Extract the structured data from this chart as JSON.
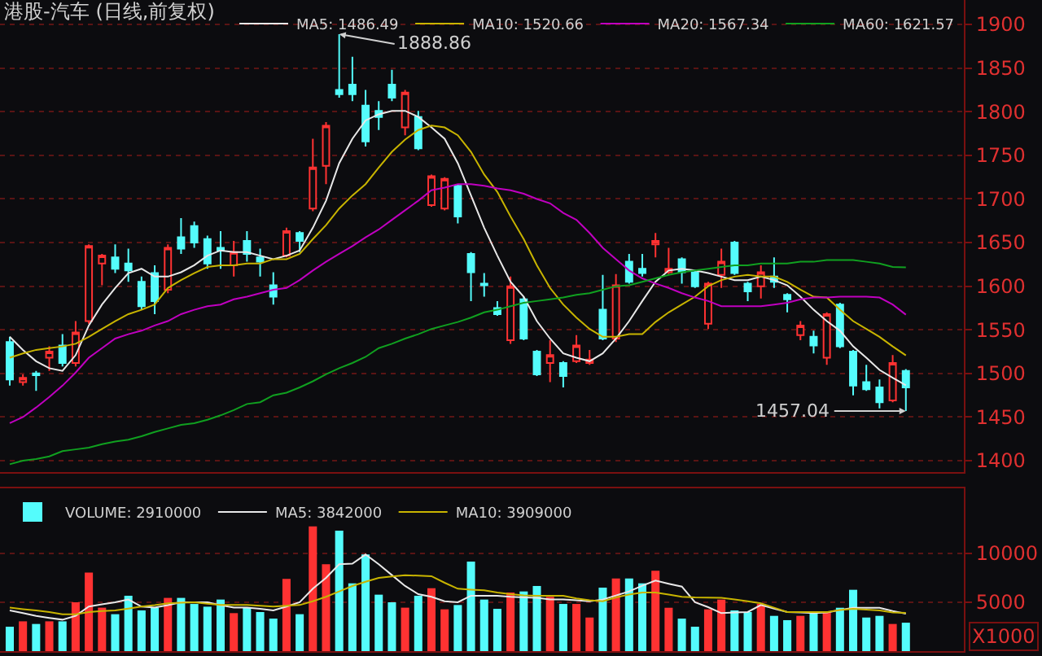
{
  "chart_data": [
    {
      "type": "candlestick",
      "title": "港股-汽车 (日线,前复权)",
      "categories": [
        null,
        null,
        null,
        null,
        null,
        null,
        null,
        null,
        null,
        null,
        null,
        null,
        null,
        null,
        null,
        null,
        null,
        null,
        null,
        null,
        null,
        null,
        null,
        null,
        null,
        null,
        null,
        null,
        null,
        null,
        null,
        null,
        null,
        null,
        null,
        null,
        null,
        null,
        null,
        null,
        null,
        null,
        null,
        null,
        null,
        null,
        null,
        null,
        null,
        null,
        null,
        null,
        null,
        null,
        null,
        null,
        null,
        null,
        null,
        null,
        null,
        null,
        null,
        null,
        null,
        null,
        null,
        null,
        null
      ],
      "ohlc": [
        [
          1536,
          1542,
          1486,
          1493
        ],
        [
          1490,
          1499,
          1486,
          1495
        ],
        [
          1500,
          1503,
          1480,
          1498
        ],
        [
          1518,
          1531,
          1503,
          1525
        ],
        [
          1532,
          1545,
          1508,
          1512
        ],
        [
          1512,
          1560,
          1508,
          1547
        ],
        [
          1560,
          1648,
          1557,
          1646
        ],
        [
          1626,
          1637,
          1601,
          1635
        ],
        [
          1633,
          1648,
          1615,
          1620
        ],
        [
          1626,
          1643,
          1605,
          1618
        ],
        [
          1605,
          1611,
          1573,
          1577
        ],
        [
          1615,
          1624,
          1568,
          1583
        ],
        [
          1596,
          1648,
          1592,
          1644
        ],
        [
          1656,
          1678,
          1637,
          1643
        ],
        [
          1669,
          1674,
          1644,
          1650
        ],
        [
          1654,
          1658,
          1620,
          1626
        ],
        [
          1644,
          1663,
          1620,
          1641
        ],
        [
          1624,
          1652,
          1611,
          1639
        ],
        [
          1652,
          1663,
          1628,
          1637
        ],
        [
          1633,
          1643,
          1611,
          1628
        ],
        [
          1601,
          1616,
          1579,
          1588
        ],
        [
          1635,
          1667,
          1633,
          1663
        ],
        [
          1661,
          1663,
          1639,
          1652
        ],
        [
          1689,
          1769,
          1686,
          1736
        ],
        [
          1738,
          1788,
          1717,
          1784
        ],
        [
          1825,
          1888.86,
          1816,
          1820
        ],
        [
          1831,
          1863,
          1812,
          1820
        ],
        [
          1807,
          1825,
          1760,
          1766
        ],
        [
          1801,
          1812,
          1779,
          1794
        ],
        [
          1831,
          1848,
          1812,
          1816
        ],
        [
          1782,
          1825,
          1773,
          1822
        ],
        [
          1794,
          1801,
          1756,
          1758
        ],
        [
          1693,
          1728,
          1691,
          1726
        ],
        [
          1689,
          1725,
          1687,
          1723
        ],
        [
          1715,
          1717,
          1672,
          1680
        ],
        [
          1637,
          1639,
          1583,
          1616
        ],
        [
          1603,
          1615,
          1588,
          1601
        ],
        [
          1575,
          1583,
          1566,
          1568
        ],
        [
          1538,
          1611,
          1534,
          1600
        ],
        [
          1585,
          1588,
          1538,
          1540
        ],
        [
          1525,
          1527,
          1497,
          1499
        ],
        [
          1512,
          1538,
          1490,
          1521
        ],
        [
          1512,
          1514,
          1484,
          1497
        ],
        [
          1514,
          1544,
          1512,
          1532
        ],
        [
          1512,
          1527,
          1510,
          1516
        ],
        [
          1573,
          1613,
          1538,
          1540
        ],
        [
          1540,
          1614,
          1536,
          1601
        ],
        [
          1628,
          1637,
          1603,
          1605
        ],
        [
          1620,
          1637,
          1611,
          1615
        ],
        [
          1648,
          1661,
          1633,
          1652
        ],
        [
          1616,
          1644,
          1614,
          1620
        ],
        [
          1631,
          1633,
          1603,
          1616
        ],
        [
          1616,
          1618,
          1598,
          1600
        ],
        [
          1557,
          1605,
          1551,
          1603
        ],
        [
          1613,
          1643,
          1598,
          1628
        ],
        [
          1650,
          1652,
          1613,
          1615
        ],
        [
          1603,
          1605,
          1583,
          1594
        ],
        [
          1600,
          1624,
          1586,
          1616
        ],
        [
          1611,
          1633,
          1598,
          1605
        ],
        [
          1590,
          1592,
          1570,
          1585
        ],
        [
          1544,
          1560,
          1538,
          1555
        ],
        [
          1542,
          1549,
          1523,
          1532
        ],
        [
          1518,
          1570,
          1510,
          1568
        ],
        [
          1579,
          1581,
          1529,
          1531
        ],
        [
          1525,
          1527,
          1475,
          1486
        ],
        [
          1490,
          1510,
          1480,
          1482
        ],
        [
          1484,
          1493,
          1460,
          1467
        ],
        [
          1469,
          1521,
          1467,
          1512
        ],
        [
          1503,
          1505,
          1457.04,
          1484
        ]
      ],
      "series": [
        {
          "type": "line",
          "name": "MA5: 1486.49",
          "color": "#e8e8e8",
          "values": [
            1542,
            1527,
            1514,
            1506,
            1503,
            1521,
            1555,
            1579,
            1598,
            1615,
            1620,
            1611,
            1611,
            1616,
            1624,
            1635,
            1641,
            1639,
            1639,
            1635,
            1631,
            1635,
            1641,
            1667,
            1698,
            1741,
            1769,
            1790,
            1797,
            1801,
            1801,
            1794,
            1782,
            1769,
            1741,
            1704,
            1667,
            1635,
            1605,
            1588,
            1560,
            1540,
            1523,
            1518,
            1514,
            1523,
            1540,
            1560,
            1583,
            1605,
            1618,
            1620,
            1618,
            1615,
            1611,
            1607,
            1607,
            1611,
            1607,
            1601,
            1588,
            1573,
            1560,
            1549,
            1531,
            1518,
            1504,
            1495,
            1486.49
          ]
        },
        {
          "type": "line",
          "name": "MA10: 1520.66",
          "color": "#c8b400",
          "values": [
            1518,
            1523,
            1527,
            1529,
            1531,
            1534,
            1542,
            1551,
            1560,
            1568,
            1573,
            1579,
            1598,
            1607,
            1615,
            1622,
            1624,
            1624,
            1626,
            1626,
            1631,
            1631,
            1637,
            1654,
            1670,
            1689,
            1704,
            1717,
            1736,
            1754,
            1768,
            1779,
            1784,
            1782,
            1773,
            1754,
            1728,
            1708,
            1680,
            1654,
            1624,
            1598,
            1579,
            1564,
            1551,
            1542,
            1542,
            1545,
            1545,
            1559,
            1570,
            1579,
            1588,
            1600,
            1607,
            1611,
            1613,
            1611,
            1611,
            1605,
            1596,
            1588,
            1587,
            1573,
            1560,
            1551,
            1542,
            1531,
            1520.66
          ]
        },
        {
          "type": "line",
          "name": "MA20: 1567.34",
          "color": "#c000c0",
          "values": [
            1443,
            1450,
            1461,
            1473,
            1486,
            1501,
            1518,
            1529,
            1540,
            1545,
            1549,
            1555,
            1560,
            1568,
            1573,
            1577,
            1579,
            1585,
            1588,
            1592,
            1596,
            1598,
            1607,
            1618,
            1628,
            1637,
            1646,
            1656,
            1665,
            1676,
            1687,
            1698,
            1710,
            1713,
            1717,
            1717,
            1715,
            1712,
            1710,
            1706,
            1700,
            1695,
            1684,
            1676,
            1661,
            1644,
            1631,
            1618,
            1609,
            1603,
            1598,
            1592,
            1587,
            1583,
            1577,
            1577,
            1577,
            1577,
            1579,
            1581,
            1585,
            1587,
            1587,
            1588,
            1588,
            1588,
            1587,
            1579,
            1567.34
          ]
        },
        {
          "type": "line",
          "name": "MA60: 1621.57",
          "color": "#10a020",
          "values": [
            1396,
            1400,
            1402,
            1405,
            1411,
            1413,
            1415,
            1419,
            1422,
            1424,
            1428,
            1433,
            1437,
            1441,
            1443,
            1447,
            1452,
            1458,
            1465,
            1467,
            1475,
            1478,
            1484,
            1491,
            1499,
            1506,
            1512,
            1519,
            1529,
            1534,
            1540,
            1545,
            1551,
            1555,
            1559,
            1564,
            1570,
            1573,
            1577,
            1581,
            1583,
            1585,
            1587,
            1590,
            1592,
            1596,
            1600,
            1601,
            1605,
            1609,
            1613,
            1616,
            1618,
            1620,
            1622,
            1624,
            1624,
            1626,
            1626,
            1626,
            1628,
            1628,
            1630,
            1630,
            1630,
            1628,
            1626,
            1622,
            1621.57
          ]
        }
      ],
      "ylim": [
        1387,
        1928
      ],
      "yticks": [
        1400,
        1450,
        1500,
        1550,
        1600,
        1650,
        1700,
        1750,
        1800,
        1850,
        1900
      ],
      "annotations": [
        "1888.86",
        "1457.04"
      ],
      "grid": "y",
      "legend": "top right",
      "tick_labels": "y"
    },
    {
      "type": "bar",
      "categories": [
        null,
        null,
        null,
        null,
        null,
        null,
        null,
        null,
        null,
        null,
        null,
        null,
        null,
        null,
        null,
        null,
        null,
        null,
        null,
        null,
        null,
        null,
        null,
        null,
        null,
        null,
        null,
        null,
        null,
        null,
        null,
        null,
        null,
        null,
        null,
        null,
        null,
        null,
        null,
        null,
        null,
        null,
        null,
        null,
        null,
        null,
        null,
        null,
        null,
        null,
        null,
        null,
        null,
        null,
        null,
        null,
        null,
        null,
        null,
        null,
        null,
        null,
        null,
        null,
        null,
        null,
        null,
        null,
        null
      ],
      "series": [
        {
          "type": "bar",
          "name": "VOLUME: 2910000",
          "values": [
            2500,
            3050,
            2780,
            3050,
            3050,
            5000,
            8050,
            4450,
            3780,
            5670,
            4170,
            4450,
            5450,
            5450,
            4830,
            4550,
            5280,
            3890,
            4450,
            4000,
            3330,
            7390,
            3780,
            12780,
            8890,
            12330,
            6940,
            9890,
            5780,
            5000,
            4450,
            5670,
            6440,
            4280,
            4720,
            9170,
            5280,
            4330,
            6000,
            6110,
            6670,
            5560,
            4830,
            4830,
            3440,
            6500,
            7440,
            7440,
            6940,
            8220,
            4440,
            3330,
            2500,
            4280,
            5280,
            4170,
            4000,
            4830,
            3610,
            3170,
            3610,
            4000,
            4000,
            4440,
            6280,
            3440,
            3610,
            2780,
            2910
          ],
          "colors": [
            "#54fcfc",
            "#ff3232",
            "#54fcfc",
            "#ff3232",
            "#54fcfc",
            "#ff3232",
            "#ff3232",
            "#ff3232",
            "#54fcfc",
            "#54fcfc",
            "#54fcfc",
            "#54fcfc",
            "#ff3232",
            "#54fcfc",
            "#54fcfc",
            "#54fcfc",
            "#54fcfc",
            "#ff3232",
            "#54fcfc",
            "#54fcfc",
            "#54fcfc",
            "#ff3232",
            "#54fcfc",
            "#ff3232",
            "#ff3232",
            "#54fcfc",
            "#54fcfc",
            "#54fcfc",
            "#54fcfc",
            "#54fcfc",
            "#ff3232",
            "#54fcfc",
            "#ff3232",
            "#ff3232",
            "#54fcfc",
            "#54fcfc",
            "#54fcfc",
            "#54fcfc",
            "#ff3232",
            "#54fcfc",
            "#54fcfc",
            "#ff3232",
            "#54fcfc",
            "#ff3232",
            "#ff3232",
            "#54fcfc",
            "#ff3232",
            "#54fcfc",
            "#54fcfc",
            "#ff3232",
            "#ff3232",
            "#54fcfc",
            "#54fcfc",
            "#ff3232",
            "#ff3232",
            "#54fcfc",
            "#54fcfc",
            "#ff3232",
            "#54fcfc",
            "#54fcfc",
            "#ff3232",
            "#54fcfc",
            "#ff3232",
            "#54fcfc",
            "#54fcfc",
            "#54fcfc",
            "#54fcfc",
            "#ff3232",
            "#54fcfc"
          ]
        },
        {
          "type": "line",
          "name": "MA5: 3842000",
          "color": "#e8e8e8",
          "values": [
            4170,
            3900,
            3610,
            3400,
            3220,
            3610,
            4560,
            4800,
            5000,
            5280,
            4560,
            4450,
            4700,
            5000,
            5000,
            5000,
            4700,
            4450,
            4450,
            4330,
            4170,
            4560,
            5000,
            6390,
            7500,
            8890,
            8950,
            9890,
            8890,
            7780,
            6670,
            5830,
            5560,
            5110,
            5000,
            5670,
            5670,
            5670,
            5560,
            5500,
            5450,
            5300,
            5300,
            5200,
            5110,
            5280,
            5700,
            6110,
            6700,
            7220,
            6900,
            6610,
            5000,
            4500,
            3890,
            3950,
            4000,
            4720,
            4350,
            4000,
            3950,
            3890,
            3950,
            4200,
            4440,
            4440,
            4440,
            4100,
            3842
          ]
        },
        {
          "type": "line",
          "name": "MA10: 3909000",
          "color": "#c8b400",
          "values": [
            4450,
            4300,
            4170,
            4000,
            3780,
            3780,
            4000,
            4100,
            4170,
            4360,
            4560,
            4700,
            4890,
            4950,
            5000,
            4850,
            4720,
            4720,
            4720,
            4640,
            4560,
            4640,
            4720,
            5100,
            5560,
            6110,
            6670,
            7100,
            7500,
            7640,
            7780,
            7720,
            7670,
            7000,
            6390,
            6300,
            6220,
            6000,
            5830,
            5700,
            5670,
            5670,
            5670,
            5400,
            5200,
            5110,
            5500,
            5800,
            6000,
            6000,
            5800,
            5560,
            5500,
            5480,
            5450,
            5300,
            5100,
            4890,
            4450,
            4000,
            4000,
            4000,
            4000,
            4200,
            4330,
            4250,
            4170,
            3950,
            3909
          ]
        }
      ],
      "ylim": [
        0,
        16667
      ],
      "yticks": [
        5000,
        10000
      ],
      "annotations": [
        "X1000"
      ],
      "grid": "y",
      "legend": "top left",
      "tick_labels": "y"
    }
  ]
}
